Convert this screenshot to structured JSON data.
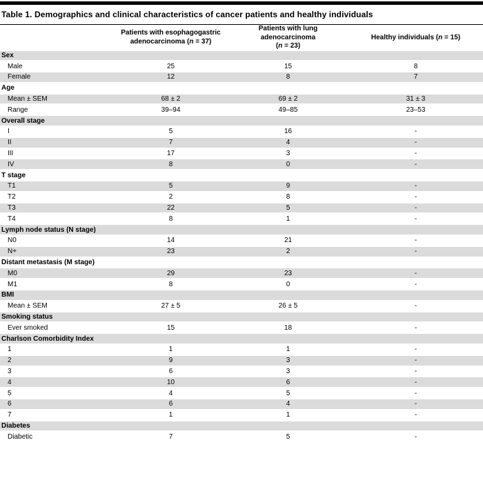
{
  "page": {
    "title": "Table 1. Demographics and clinical characteristics of cancer patients and healthy individuals"
  },
  "table": {
    "columns": [
      {
        "lines": [
          ""
        ]
      },
      {
        "lines": [
          "Patients with esophagogastric",
          "adenocarcinoma (n = 37)"
        ]
      },
      {
        "lines": [
          "Patients with lung adenocarcinoma",
          "(n = 23)"
        ]
      },
      {
        "lines": [
          "Healthy individuals (n = 15)"
        ]
      }
    ],
    "rows": [
      {
        "label": "Sex",
        "type": "section",
        "values": [
          "",
          "",
          ""
        ]
      },
      {
        "label": "Male",
        "type": "data",
        "values": [
          "25",
          "15",
          "8"
        ]
      },
      {
        "label": "Female",
        "type": "data",
        "values": [
          "12",
          "8",
          "7"
        ]
      },
      {
        "label": "Age",
        "type": "section",
        "values": [
          "",
          "",
          ""
        ]
      },
      {
        "label": "Mean ± SEM",
        "type": "data",
        "values": [
          "68 ± 2",
          "69 ± 2",
          "31 ± 3"
        ]
      },
      {
        "label": "Range",
        "type": "data",
        "values": [
          "39–94",
          "49–85",
          "23–53"
        ]
      },
      {
        "label": "Overall stage",
        "type": "section",
        "values": [
          "",
          "",
          ""
        ]
      },
      {
        "label": "I",
        "type": "data",
        "values": [
          "5",
          "16",
          "-"
        ]
      },
      {
        "label": "II",
        "type": "data",
        "values": [
          "7",
          "4",
          "-"
        ]
      },
      {
        "label": "III",
        "type": "data",
        "values": [
          "17",
          "3",
          "-"
        ]
      },
      {
        "label": "IV",
        "type": "data",
        "values": [
          "8",
          "0",
          "-"
        ]
      },
      {
        "label": "T stage",
        "type": "section",
        "values": [
          "",
          "",
          ""
        ]
      },
      {
        "label": "T1",
        "type": "data",
        "values": [
          "5",
          "9",
          "-"
        ]
      },
      {
        "label": "T2",
        "type": "data",
        "values": [
          "2",
          "8",
          "-"
        ]
      },
      {
        "label": "T3",
        "type": "data",
        "values": [
          "22",
          "5",
          "-"
        ]
      },
      {
        "label": "T4",
        "type": "data",
        "values": [
          "8",
          "1",
          "-"
        ]
      },
      {
        "label": "Lymph node status (N stage)",
        "type": "section",
        "values": [
          "",
          "",
          ""
        ]
      },
      {
        "label": "N0",
        "type": "data",
        "values": [
          "14",
          "21",
          "-"
        ]
      },
      {
        "label": "N+",
        "type": "data",
        "values": [
          "23",
          "2",
          "-"
        ]
      },
      {
        "label": "Distant metastasis (M stage)",
        "type": "section",
        "values": [
          "",
          "",
          ""
        ]
      },
      {
        "label": "M0",
        "type": "data",
        "values": [
          "29",
          "23",
          "-"
        ]
      },
      {
        "label": "M1",
        "type": "data",
        "values": [
          "8",
          "0",
          "-"
        ]
      },
      {
        "label": "BMI",
        "type": "section",
        "values": [
          "",
          "",
          ""
        ]
      },
      {
        "label": "Mean ± SEM",
        "type": "data",
        "values": [
          "27 ± 5",
          "26 ± 5",
          "-"
        ]
      },
      {
        "label": "Smoking status",
        "type": "section",
        "values": [
          "",
          "",
          ""
        ]
      },
      {
        "label": "Ever smoked",
        "type": "data",
        "values": [
          "15",
          "18",
          "-"
        ]
      },
      {
        "label": "Charlson Comorbidity Index",
        "type": "section",
        "values": [
          "",
          "",
          ""
        ]
      },
      {
        "label": "1",
        "type": "data",
        "values": [
          "1",
          "1",
          "-"
        ]
      },
      {
        "label": "2",
        "type": "data",
        "values": [
          "9",
          "3",
          "-"
        ]
      },
      {
        "label": "3",
        "type": "data",
        "values": [
          "6",
          "3",
          "-"
        ]
      },
      {
        "label": "4",
        "type": "data",
        "values": [
          "10",
          "6",
          "-"
        ]
      },
      {
        "label": "5",
        "type": "data",
        "values": [
          "4",
          "5",
          "-"
        ]
      },
      {
        "label": "6",
        "type": "data",
        "values": [
          "6",
          "4",
          "-"
        ]
      },
      {
        "label": "7",
        "type": "data",
        "values": [
          "1",
          "1",
          "-"
        ]
      },
      {
        "label": "Diabetes",
        "type": "section",
        "values": [
          "",
          "",
          ""
        ]
      },
      {
        "label": "Diabetic",
        "type": "data",
        "values": [
          "7",
          "5",
          "-"
        ]
      }
    ]
  }
}
